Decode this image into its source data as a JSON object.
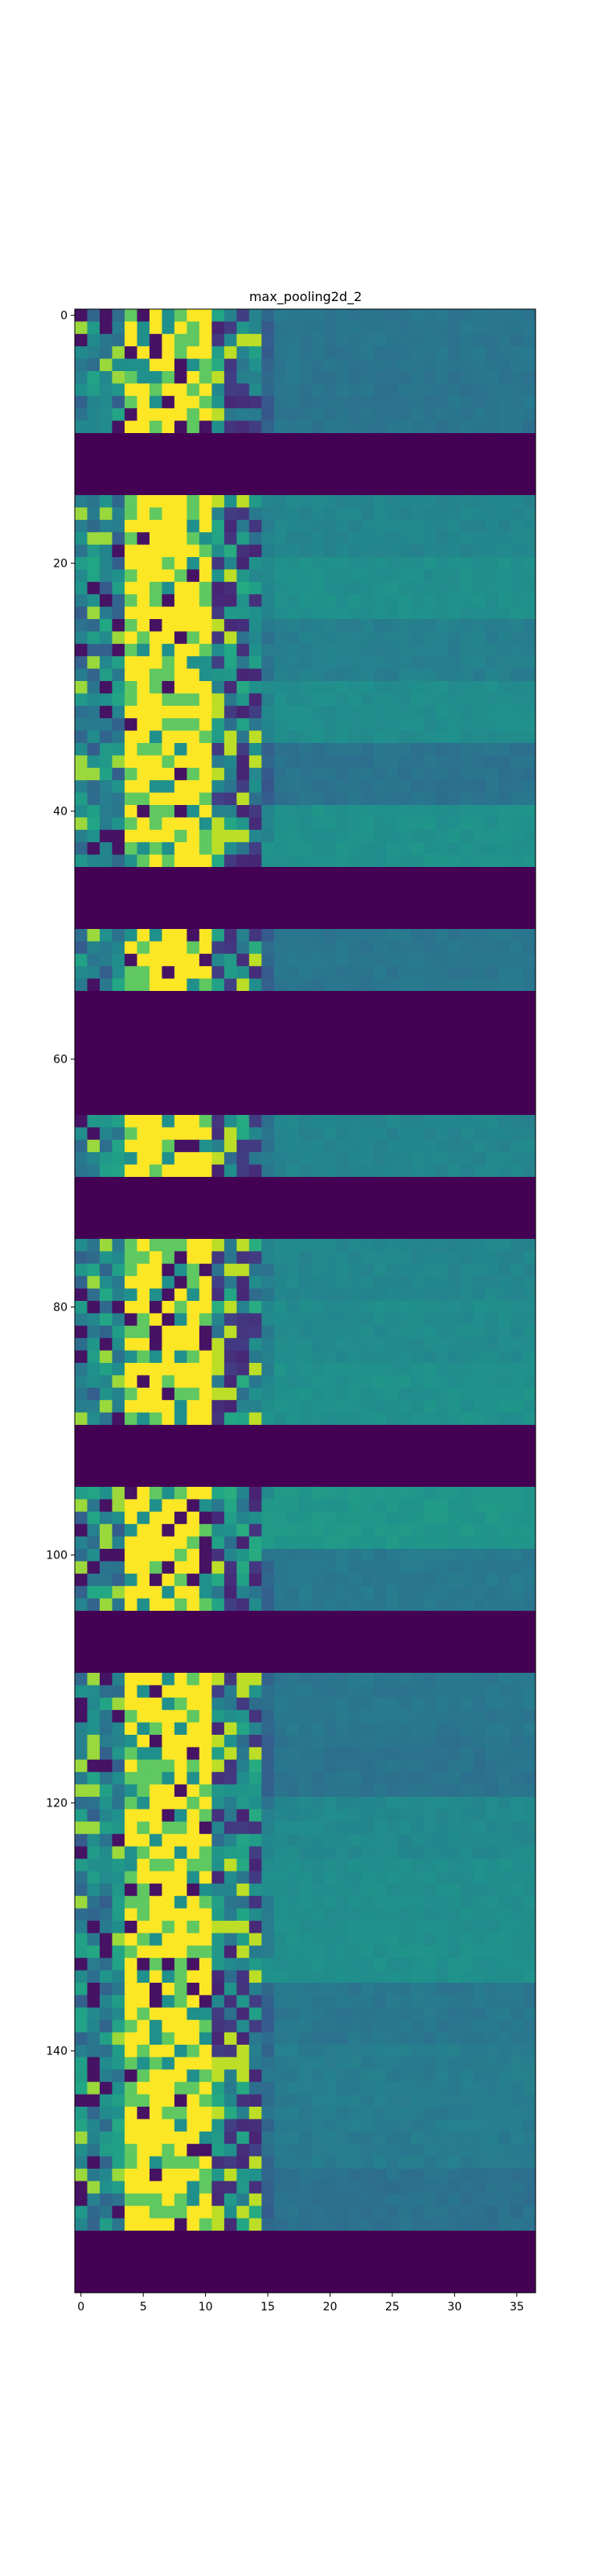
{
  "chart_data": {
    "type": "heatmap",
    "title": "max_pooling2d_2",
    "xlabel": "",
    "ylabel": "",
    "colormap": "viridis",
    "xlim": [
      -0.5,
      36.5
    ],
    "ylim": [
      159.5,
      -0.5
    ],
    "x_ticks": [
      0,
      5,
      10,
      15,
      20,
      25,
      30,
      35
    ],
    "y_ticks": [
      0,
      20,
      40,
      60,
      80,
      100,
      120,
      140
    ],
    "grid": false,
    "n_rows": 160,
    "n_cols": 37,
    "bands": [
      {
        "rows": [
          0,
          9
        ],
        "kind": "active"
      },
      {
        "rows": [
          10,
          14
        ],
        "kind": "blank"
      },
      {
        "rows": [
          15,
          44
        ],
        "kind": "active"
      },
      {
        "rows": [
          45,
          49
        ],
        "kind": "blank"
      },
      {
        "rows": [
          50,
          54
        ],
        "kind": "active"
      },
      {
        "rows": [
          55,
          64
        ],
        "kind": "blank"
      },
      {
        "rows": [
          65,
          69
        ],
        "kind": "active"
      },
      {
        "rows": [
          70,
          74
        ],
        "kind": "blank"
      },
      {
        "rows": [
          75,
          89
        ],
        "kind": "active"
      },
      {
        "rows": [
          90,
          94
        ],
        "kind": "blank"
      },
      {
        "rows": [
          95,
          104
        ],
        "kind": "active"
      },
      {
        "rows": [
          105,
          109
        ],
        "kind": "blank"
      },
      {
        "rows": [
          110,
          154
        ],
        "kind": "active"
      },
      {
        "rows": [
          155,
          159
        ],
        "kind": "blank"
      }
    ],
    "blank_value": 0.0,
    "bright_columns": [
      4,
      10
    ],
    "dark_columns": [
      11,
      14
    ],
    "right_region_value": 0.45
  }
}
